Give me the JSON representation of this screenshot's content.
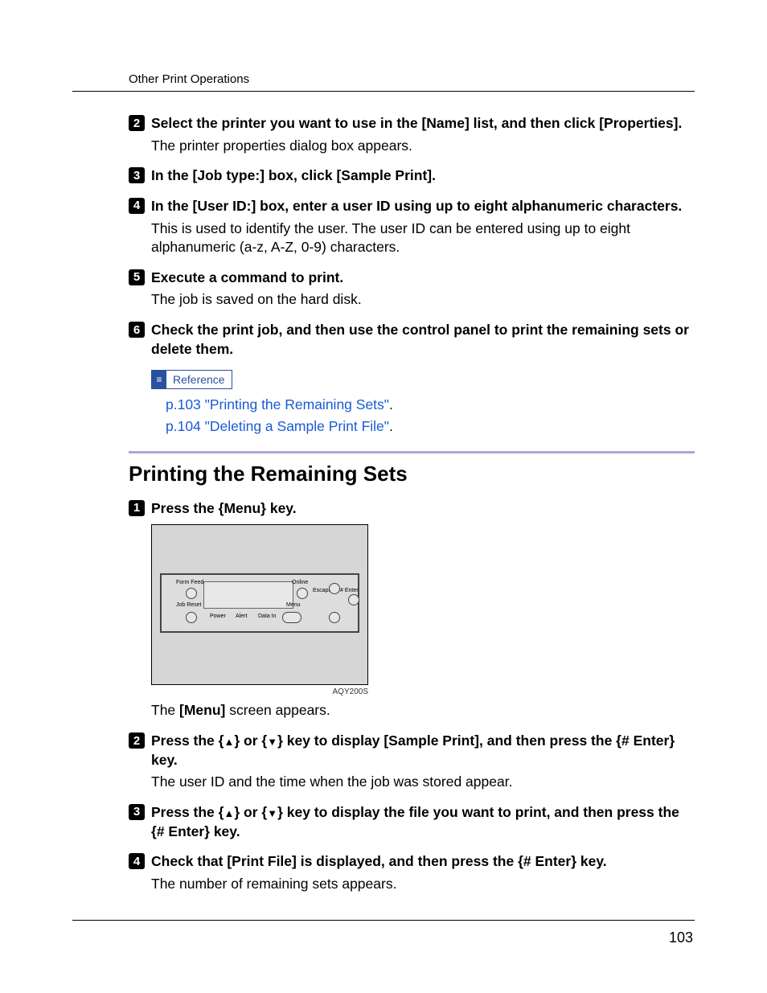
{
  "running_head": "Other Print Operations",
  "page_number": "103",
  "top_steps": [
    {
      "num": "2",
      "title_parts": [
        "Select the printer you want to use in the ",
        "[Name]",
        " list, and then click ",
        "[Properties]",
        "."
      ],
      "body": "The printer properties dialog box appears."
    },
    {
      "num": "3",
      "title_parts": [
        "In the ",
        "[Job type:]",
        " box, click ",
        "[Sample Print]",
        "."
      ],
      "body": ""
    },
    {
      "num": "4",
      "title_parts": [
        "In the ",
        "[User ID:]",
        " box, enter a user ID using up to eight alphanumeric characters."
      ],
      "body": "This is used to identify the user. The user ID can be entered using up to eight alphanumeric (a-z, A-Z, 0-9) characters."
    },
    {
      "num": "5",
      "title_parts": [
        "Execute a command to print."
      ],
      "body": "The job is saved on the hard disk."
    },
    {
      "num": "6",
      "title_parts": [
        "Check the print job, and then use the control panel to print the remaining sets or delete them."
      ],
      "body": ""
    }
  ],
  "reference": {
    "label": "Reference",
    "links": [
      "p.103 \"Printing the Remaining Sets\"",
      "p.104 \"Deleting a Sample Print File\""
    ]
  },
  "section_title": "Printing the Remaining Sets",
  "bottom_steps": [
    {
      "num": "1",
      "title_html": "Press the {<span class=\"ui\">Menu</span>} key.",
      "has_figure": true,
      "fig_code": "AQY200S",
      "after_body": [
        "The ",
        "[Menu]",
        " screen appears."
      ]
    },
    {
      "num": "2",
      "title_html": "Press the {<span class=\"arrow\">▲</span>} or {<span class=\"arrow\">▼</span>} key to display <span class=\"ui\">[Sample Print]</span>, and then press the {<span class=\"ui\"># Enter</span>} key.",
      "body": "The user ID and the time when the job was stored appear."
    },
    {
      "num": "3",
      "title_html": "Press the {<span class=\"arrow\">▲</span>} or {<span class=\"arrow\">▼</span>} key to display the file you want to print, and then press the {<span class=\"ui\"># Enter</span>} key.",
      "body": ""
    },
    {
      "num": "4",
      "title_html": "Check that <span class=\"ui\">[Print File]</span> is displayed, and then press the {<span class=\"ui\"># Enter</span>} key.",
      "body": "The number of remaining sets appears."
    }
  ],
  "panel": {
    "labels": {
      "form_feed": "Form Feed",
      "job_reset": "Job Reset",
      "power": "Power",
      "alert": "Alert",
      "data_in": "Data In",
      "online": "Online",
      "menu": "Menu",
      "escape": "Escape",
      "enter": "# Enter"
    }
  }
}
